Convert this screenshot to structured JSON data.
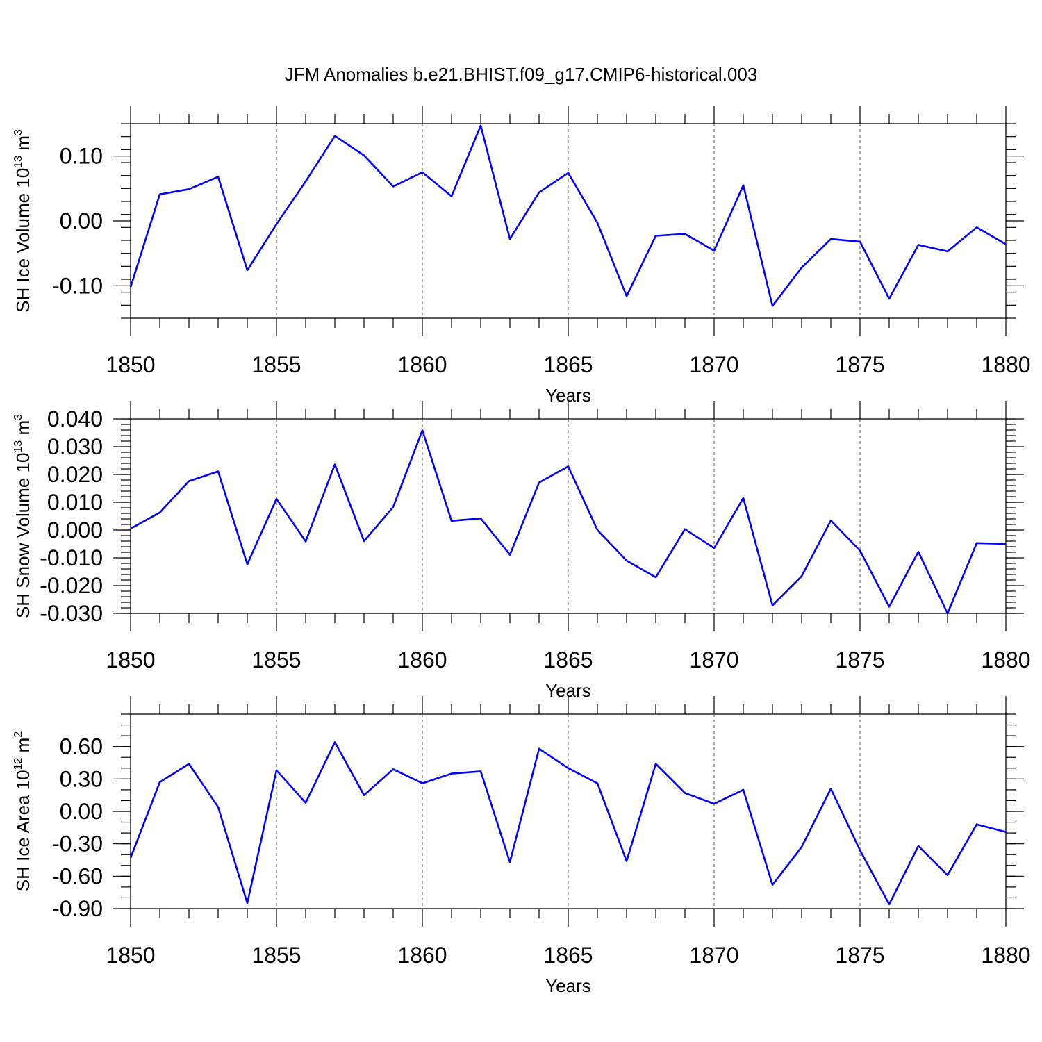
{
  "title": "JFM Anomalies b.e21.BHIST.f09_g17.CMIP6-historical.003",
  "line_color": "#0000ff",
  "chart_data": [
    {
      "type": "line",
      "ylabel_main": "SH Ice Volume 10",
      "ylabel_exp": "13",
      "ylabel_unit": " m",
      "ylabel_unit_exp": "3",
      "xlabel": "Years",
      "xlim": [
        1850,
        1880
      ],
      "ylim": [
        -0.15,
        0.15
      ],
      "xticks": [
        1850,
        1855,
        1860,
        1865,
        1870,
        1875,
        1880
      ],
      "xtick_labels": [
        "1850",
        "1855",
        "1860",
        "1865",
        "1870",
        "1875",
        "1880"
      ],
      "yticks": [
        -0.1,
        0.0,
        0.1
      ],
      "ytick_labels": [
        "-0.10",
        "0.00",
        "0.10"
      ],
      "ytick_minor_step": 0.02,
      "x": [
        1850,
        1851,
        1852,
        1853,
        1854,
        1855,
        1856,
        1857,
        1858,
        1859,
        1860,
        1861,
        1862,
        1863,
        1864,
        1865,
        1866,
        1867,
        1868,
        1869,
        1870,
        1871,
        1872,
        1873,
        1874,
        1875,
        1876,
        1877,
        1878,
        1879,
        1880
      ],
      "values": [
        -0.102,
        0.041,
        0.049,
        0.068,
        -0.076,
        -0.005,
        0.061,
        0.131,
        0.101,
        0.053,
        0.075,
        0.038,
        0.147,
        -0.028,
        0.044,
        0.074,
        -0.003,
        -0.116,
        -0.023,
        -0.02,
        -0.046,
        0.055,
        -0.131,
        -0.072,
        -0.028,
        -0.032,
        -0.12,
        -0.037,
        -0.047,
        -0.01,
        -0.036
      ]
    },
    {
      "type": "line",
      "ylabel_main": "SH Snow Volume 10",
      "ylabel_exp": "13",
      "ylabel_unit": " m",
      "ylabel_unit_exp": "3",
      "xlabel": "Years",
      "xlim": [
        1850,
        1880
      ],
      "ylim": [
        -0.03,
        0.04
      ],
      "xticks": [
        1850,
        1855,
        1860,
        1865,
        1870,
        1875,
        1880
      ],
      "xtick_labels": [
        "1850",
        "1855",
        "1860",
        "1865",
        "1870",
        "1875",
        "1880"
      ],
      "yticks": [
        -0.03,
        -0.02,
        -0.01,
        0.0,
        0.01,
        0.02,
        0.03,
        0.04
      ],
      "ytick_labels": [
        "-0.030",
        "-0.020",
        "-0.010",
        "0.000",
        "0.010",
        "0.020",
        "0.030",
        "0.040"
      ],
      "ytick_minor_step": 0.002,
      "x": [
        1850,
        1851,
        1852,
        1853,
        1854,
        1855,
        1856,
        1857,
        1858,
        1859,
        1860,
        1861,
        1862,
        1863,
        1864,
        1865,
        1866,
        1867,
        1868,
        1869,
        1870,
        1871,
        1872,
        1873,
        1874,
        1875,
        1876,
        1877,
        1878,
        1879,
        1880
      ],
      "values": [
        0.0005,
        0.0063,
        0.0176,
        0.0211,
        -0.0123,
        0.0112,
        -0.0041,
        0.0236,
        -0.004,
        0.0083,
        0.0359,
        0.0033,
        0.0042,
        -0.0089,
        0.0171,
        0.0229,
        0.0,
        -0.011,
        -0.017,
        0.0003,
        -0.0065,
        0.0115,
        -0.0271,
        -0.0166,
        0.0034,
        -0.0074,
        -0.0276,
        -0.0078,
        -0.03,
        -0.0047,
        -0.005
      ]
    },
    {
      "type": "line",
      "ylabel_main": "SH Ice Area 10",
      "ylabel_exp": "12",
      "ylabel_unit": " m",
      "ylabel_unit_exp": "2",
      "xlabel": "Years",
      "xlim": [
        1850,
        1880
      ],
      "ylim": [
        -0.9,
        0.9
      ],
      "xticks": [
        1850,
        1855,
        1860,
        1865,
        1870,
        1875,
        1880
      ],
      "xtick_labels": [
        "1850",
        "1855",
        "1860",
        "1865",
        "1870",
        "1875",
        "1880"
      ],
      "yticks": [
        -0.9,
        -0.6,
        -0.3,
        0.0,
        0.3,
        0.6
      ],
      "ytick_labels": [
        "-0.90",
        "-0.60",
        "-0.30",
        "0.00",
        "0.30",
        "0.60"
      ],
      "ytick_minor_step": 0.1,
      "x": [
        1850,
        1851,
        1852,
        1853,
        1854,
        1855,
        1856,
        1857,
        1858,
        1859,
        1860,
        1861,
        1862,
        1863,
        1864,
        1865,
        1866,
        1867,
        1868,
        1869,
        1870,
        1871,
        1872,
        1873,
        1874,
        1875,
        1876,
        1877,
        1878,
        1879,
        1880
      ],
      "values": [
        -0.43,
        0.27,
        0.44,
        0.04,
        -0.85,
        0.38,
        0.08,
        0.64,
        0.15,
        0.39,
        0.26,
        0.35,
        0.37,
        -0.47,
        0.58,
        0.4,
        0.26,
        -0.46,
        0.44,
        0.17,
        0.07,
        0.2,
        -0.68,
        -0.33,
        0.21,
        -0.36,
        -0.86,
        -0.32,
        -0.59,
        -0.12,
        -0.19
      ]
    }
  ]
}
